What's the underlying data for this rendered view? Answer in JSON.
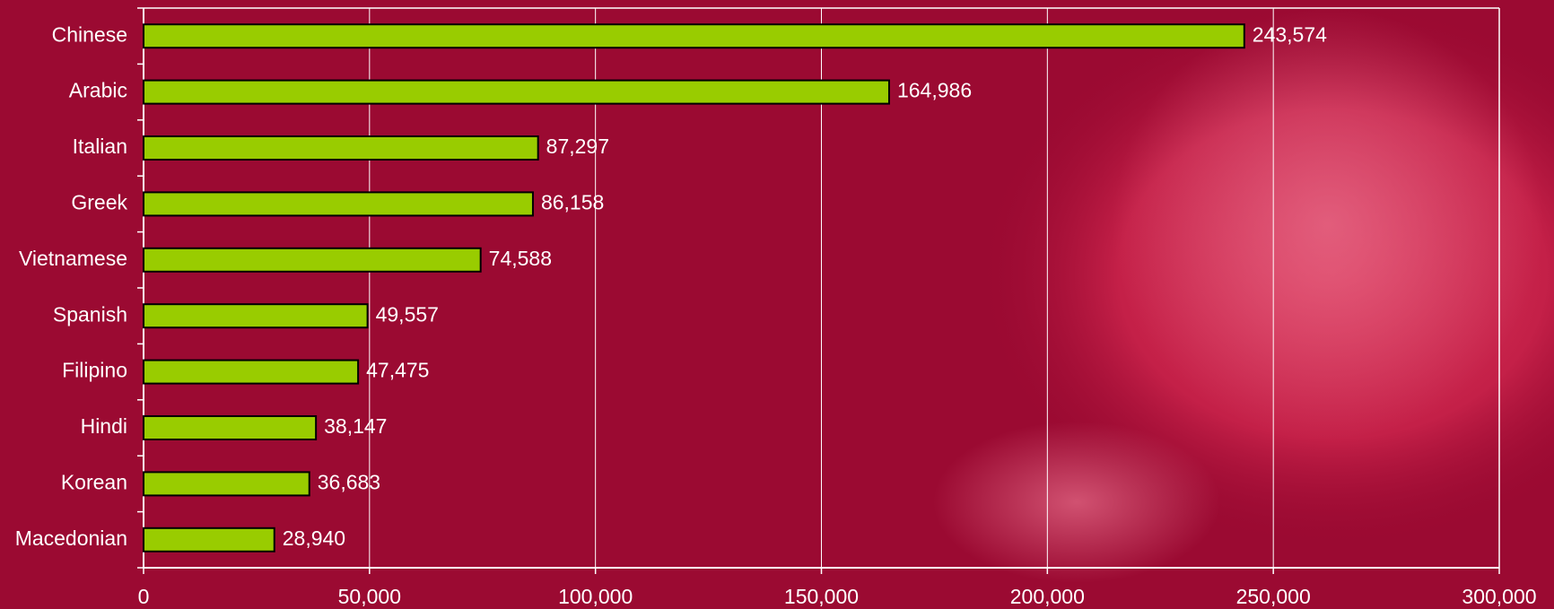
{
  "chart_data": {
    "type": "bar",
    "orientation": "horizontal",
    "categories": [
      "Chinese",
      "Arabic",
      "Italian",
      "Greek",
      "Vietnamese",
      "Spanish",
      "Filipino",
      "Hindi",
      "Korean",
      "Macedonian"
    ],
    "values": [
      243574,
      164986,
      87297,
      86158,
      74588,
      49557,
      47475,
      38147,
      36683,
      28940
    ],
    "value_labels": [
      "243,574",
      "164,986",
      "87,297",
      "86,158",
      "74,588",
      "49,557",
      "47,475",
      "38,147",
      "36,683",
      "28,940"
    ],
    "color": "#99cc00",
    "xlim": [
      0,
      300000
    ],
    "xticks": [
      0,
      {
        "value": 50000,
        "label": "50,000"
      },
      {
        "value": 100000,
        "label": "100,000"
      },
      {
        "value": 150000,
        "label": "150,000"
      },
      {
        "value": 200000,
        "label": "200,000"
      },
      {
        "value": 250000,
        "label": "250,000"
      },
      {
        "value": 300000,
        "label": "300,000"
      }
    ],
    "grid": true
  }
}
